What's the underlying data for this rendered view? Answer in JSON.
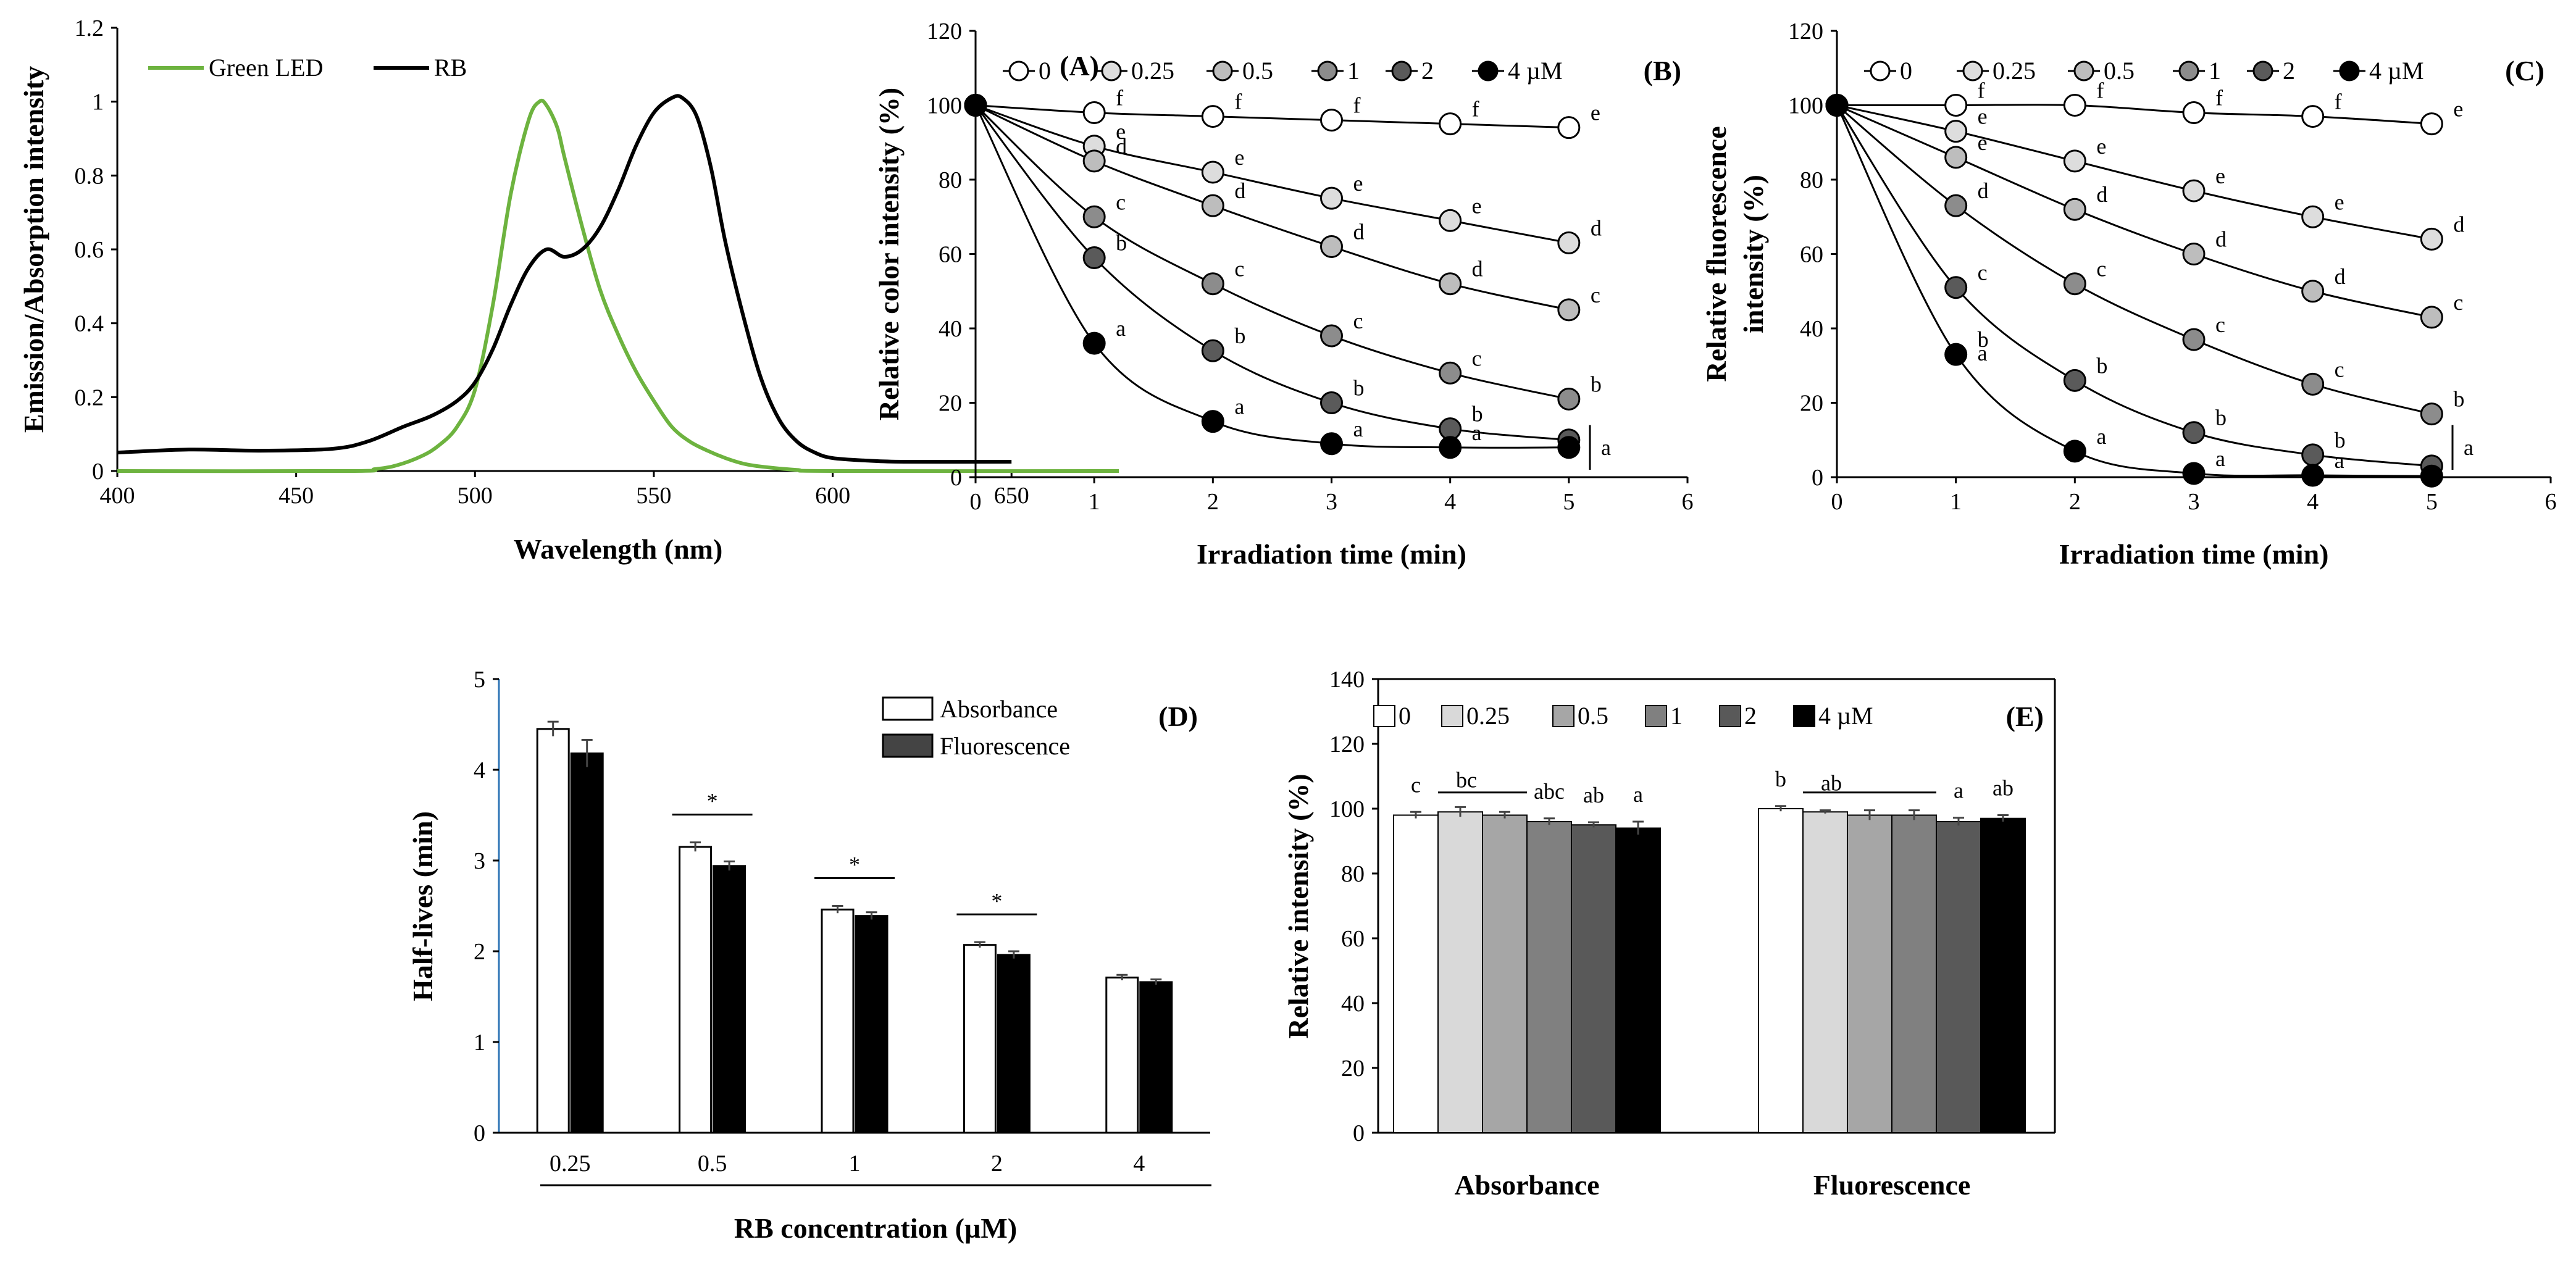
{
  "chart_data": [
    {
      "id": "A",
      "type": "line",
      "panel_label": "(A)",
      "xlabel": "Wavelength (nm)",
      "ylabel": "Emission/Absorption intensity",
      "xlim": [
        400,
        680
      ],
      "ylim": [
        0,
        1.2
      ],
      "xticks": [
        "400",
        "450",
        "500",
        "550",
        "600",
        "650"
      ],
      "yticks": [
        "0",
        "0.2",
        "0.4",
        "0.6",
        "0.8",
        "1",
        "1.2"
      ],
      "series": [
        {
          "name": "Green LED",
          "color": "#6db33f",
          "x": [
            400,
            465,
            472,
            478,
            485,
            490,
            495,
            500,
            505,
            510,
            515,
            518,
            520,
            523,
            525,
            530,
            535,
            540,
            545,
            550,
            555,
            560,
            565,
            570,
            575,
            580,
            590,
            600,
            680
          ],
          "y": [
            0,
            0,
            0.005,
            0.015,
            0.04,
            0.07,
            0.12,
            0.22,
            0.45,
            0.75,
            0.95,
            1.0,
            0.99,
            0.93,
            0.85,
            0.66,
            0.49,
            0.37,
            0.27,
            0.19,
            0.12,
            0.08,
            0.055,
            0.035,
            0.02,
            0.012,
            0.003,
            0,
            0
          ]
        },
        {
          "name": "RB",
          "color": "#000000",
          "x": [
            400,
            420,
            440,
            460,
            470,
            480,
            488,
            495,
            500,
            505,
            510,
            515,
            520,
            525,
            530,
            535,
            540,
            545,
            550,
            555,
            558,
            562,
            566,
            570,
            575,
            580,
            585,
            590,
            595,
            600,
            610,
            620,
            650
          ],
          "y": [
            0.05,
            0.058,
            0.055,
            0.06,
            0.08,
            0.12,
            0.15,
            0.19,
            0.24,
            0.33,
            0.45,
            0.55,
            0.6,
            0.58,
            0.6,
            0.66,
            0.76,
            0.88,
            0.97,
            1.01,
            1.01,
            0.96,
            0.82,
            0.62,
            0.42,
            0.25,
            0.14,
            0.08,
            0.05,
            0.035,
            0.028,
            0.025,
            0.025
          ]
        }
      ]
    },
    {
      "id": "B",
      "type": "scatter",
      "panel_label": "(B)",
      "xlabel": "Irradiation time (min)",
      "ylabel": "Relative color intensity (%)",
      "xlim": [
        0,
        6
      ],
      "ylim": [
        0,
        120
      ],
      "xticks": [
        "0",
        "1",
        "2",
        "3",
        "4",
        "5",
        "6"
      ],
      "yticks": [
        "0",
        "20",
        "40",
        "60",
        "80",
        "100",
        "120"
      ],
      "x": [
        0,
        1,
        2,
        3,
        4,
        5
      ],
      "legend_labels": [
        "0",
        "0.25",
        "0.5",
        "1",
        "2",
        "4 µM"
      ],
      "series": [
        {
          "name": "0",
          "fill": "#ffffff",
          "values": [
            100,
            98,
            97,
            96,
            95,
            94
          ],
          "letters": [
            "",
            "f",
            "f",
            "f",
            "f",
            "e"
          ]
        },
        {
          "name": "0.25",
          "fill": "#dddddd",
          "values": [
            100,
            89,
            82,
            75,
            69,
            63
          ],
          "letters": [
            "",
            "e",
            "e",
            "e",
            "e",
            "d"
          ]
        },
        {
          "name": "0.5",
          "fill": "#bdbdbd",
          "values": [
            100,
            85,
            73,
            62,
            52,
            45
          ],
          "letters": [
            "",
            "d",
            "d",
            "d",
            "d",
            "c"
          ]
        },
        {
          "name": "1",
          "fill": "#8c8c8c",
          "values": [
            100,
            70,
            52,
            38,
            28,
            21
          ],
          "letters": [
            "",
            "c",
            "c",
            "c",
            "c",
            "b"
          ]
        },
        {
          "name": "2",
          "fill": "#5a5a5a",
          "values": [
            100,
            59,
            34,
            20,
            13,
            10
          ],
          "letters": [
            "",
            "b",
            "b",
            "b",
            "b",
            ""
          ]
        },
        {
          "name": "4 µM",
          "fill": "#000000",
          "values": [
            100,
            36,
            15,
            9,
            8,
            8
          ],
          "letters": [
            "",
            "a",
            "a",
            "a",
            "a",
            ""
          ]
        }
      ],
      "bracket_letter": "a"
    },
    {
      "id": "C",
      "type": "scatter",
      "panel_label": "(C)",
      "xlabel": "Irradiation time (min)",
      "ylabel": "Relative fluorescence",
      "ylabel2": "intensity (%)",
      "xlim": [
        0,
        6
      ],
      "ylim": [
        0,
        120
      ],
      "xticks": [
        "0",
        "1",
        "2",
        "3",
        "4",
        "5",
        "6"
      ],
      "yticks": [
        "0",
        "20",
        "40",
        "60",
        "80",
        "100",
        "120"
      ],
      "x": [
        0,
        1,
        2,
        3,
        4,
        5
      ],
      "legend_labels": [
        "0",
        "0.25",
        "0.5",
        "1",
        "2",
        "4 µM"
      ],
      "series": [
        {
          "name": "0",
          "fill": "#ffffff",
          "values": [
            100,
            100,
            100,
            98,
            97,
            95
          ],
          "letters": [
            "",
            "f",
            "f",
            "f",
            "f",
            "e"
          ]
        },
        {
          "name": "0.25",
          "fill": "#dddddd",
          "values": [
            100,
            93,
            85,
            77,
            70,
            64
          ],
          "letters": [
            "",
            "e",
            "e",
            "e",
            "e",
            "d"
          ]
        },
        {
          "name": "0.5",
          "fill": "#bdbdbd",
          "values": [
            100,
            86,
            72,
            60,
            50,
            43
          ],
          "letters": [
            "",
            "e",
            "d",
            "d",
            "d",
            "c"
          ]
        },
        {
          "name": "1",
          "fill": "#8c8c8c",
          "values": [
            100,
            73,
            52,
            37,
            25,
            17
          ],
          "letters": [
            "",
            "d",
            "c",
            "c",
            "c",
            "b"
          ]
        },
        {
          "name": "2",
          "fill": "#5a5a5a",
          "values": [
            100,
            51,
            26,
            12,
            6,
            3
          ],
          "letters": [
            "",
            "c",
            "b",
            "b",
            "b",
            ""
          ]
        },
        {
          "name": "4 µM",
          "fill": "#000000",
          "values": [
            100,
            33,
            7,
            1,
            0.5,
            0.3
          ],
          "letters": [
            "",
            "b",
            "a",
            "a",
            "a",
            ""
          ]
        }
      ],
      "extra_letter": "a",
      "bracket_letter": "a"
    },
    {
      "id": "D",
      "type": "bar",
      "panel_label": "(D)",
      "xlabel": "RB concentration (µM)",
      "ylabel": "Half-lives (min)",
      "ylim": [
        0,
        5
      ],
      "yticks": [
        "0",
        "1",
        "2",
        "3",
        "4",
        "5"
      ],
      "categories": [
        "0.25",
        "0.5",
        "1",
        "2",
        "4"
      ],
      "series": [
        {
          "name": "Absorbance",
          "fill": "#ffffff",
          "values": [
            4.45,
            3.15,
            2.46,
            2.07,
            1.71
          ],
          "errors": [
            0.08,
            0.05,
            0.04,
            0.03,
            0.03
          ]
        },
        {
          "name": "Fluorescence",
          "fill": "#000000",
          "values": [
            4.18,
            2.94,
            2.39,
            1.96,
            1.66
          ],
          "errors": [
            0.15,
            0.05,
            0.04,
            0.04,
            0.03
          ]
        }
      ],
      "significance": [
        "",
        "*",
        "*",
        "*",
        ""
      ]
    },
    {
      "id": "E",
      "type": "bar",
      "panel_label": "(E)",
      "ylabel": "Relative intensity (%)",
      "ylim": [
        0,
        140
      ],
      "yticks": [
        "0",
        "20",
        "40",
        "60",
        "80",
        "100",
        "120",
        "140"
      ],
      "groups": [
        "Absorbance",
        "Fluorescence"
      ],
      "series": [
        {
          "name": "0",
          "fill": "#ffffff"
        },
        {
          "name": "0.25",
          "fill": "#d9d9d9"
        },
        {
          "name": "0.5",
          "fill": "#a6a6a6"
        },
        {
          "name": "1",
          "fill": "#808080"
        },
        {
          "name": "2",
          "fill": "#595959"
        },
        {
          "name": "4 µM",
          "fill": "#000000"
        }
      ],
      "values": [
        [
          98,
          99,
          98,
          96,
          95,
          94
        ],
        [
          100,
          99,
          98,
          98,
          96,
          97
        ]
      ],
      "errors": [
        [
          1,
          1.5,
          1,
          1,
          0.8,
          2
        ],
        [
          0.8,
          0.5,
          1.5,
          1.5,
          1.2,
          1
        ]
      ],
      "letters": [
        [
          "c",
          "bc",
          "",
          "abc",
          "ab",
          "a"
        ],
        [
          "b",
          "ab",
          "",
          "",
          "a",
          "ab"
        ]
      ]
    }
  ]
}
